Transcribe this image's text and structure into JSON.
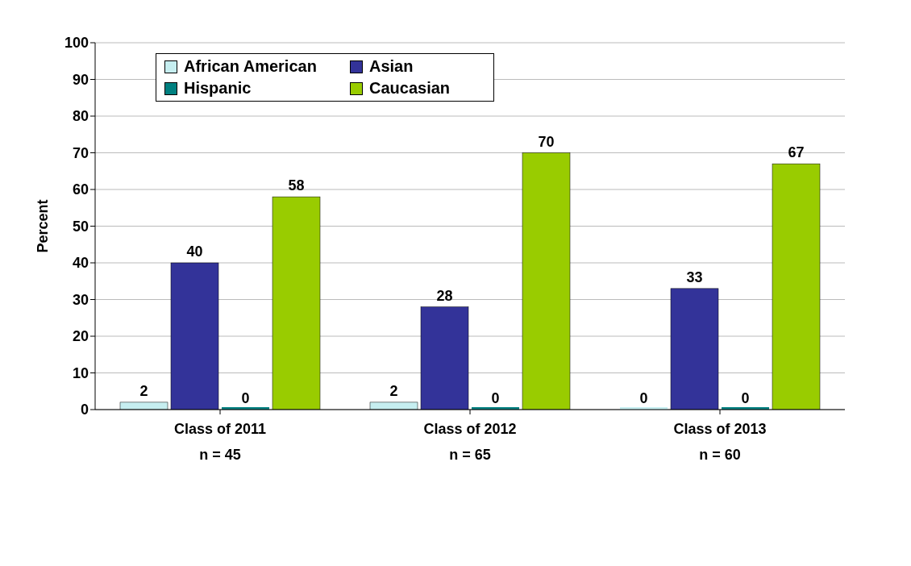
{
  "chart_data": {
    "type": "bar",
    "ylabel": "Percent",
    "categories": [
      "Class of 2011\nn = 45",
      "Class of 2012\nn = 65",
      "Class of 2013\nn = 60"
    ],
    "series": [
      {
        "name": "African American",
        "color": "#c6eef0",
        "values": [
          2,
          2,
          0
        ]
      },
      {
        "name": "Asian",
        "color": "#333399",
        "values": [
          40,
          28,
          33
        ]
      },
      {
        "name": "Hispanic",
        "color": "#008080",
        "values": [
          0,
          0,
          0
        ]
      },
      {
        "name": "Caucasian",
        "color": "#99cc00",
        "values": [
          58,
          70,
          67
        ]
      }
    ],
    "ylim": [
      0,
      100
    ],
    "yticks": [
      0,
      10,
      20,
      30,
      40,
      50,
      60,
      70,
      80,
      90,
      100
    ],
    "grid": "y",
    "legend": "top left",
    "data_labels": true
  }
}
